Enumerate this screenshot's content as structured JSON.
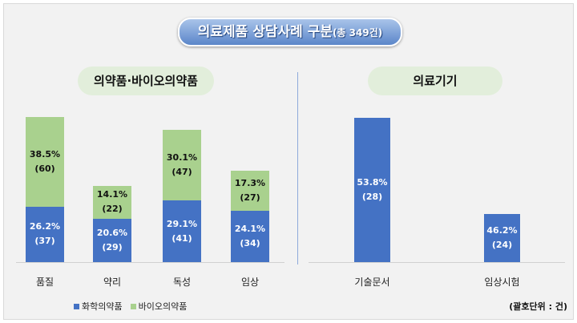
{
  "title": {
    "main": "의료제품 상담사례 구분",
    "sub": "(총 349건)"
  },
  "colors": {
    "chemical": "#4472c4",
    "bio": "#a9d18e"
  },
  "legend": [
    "화학의약품",
    "바이오의약품"
  ],
  "unit_note": "(괄호단위 : 건)",
  "chart_data": [
    {
      "type": "bar",
      "stacked": true,
      "title": "의약품·바이오의약품",
      "categories": [
        "품질",
        "약리",
        "독성",
        "임상"
      ],
      "ylim": [
        0,
        100
      ],
      "series": [
        {
          "name": "화학의약품",
          "values": [
            37,
            29,
            41,
            34
          ],
          "labels": [
            "26.2%",
            "20.6%",
            "29.1%",
            "24.1%"
          ],
          "counts": [
            "(37)",
            "(29)",
            "(41)",
            "(34)"
          ]
        },
        {
          "name": "바이오의약품",
          "values": [
            60,
            22,
            47,
            27
          ],
          "labels": [
            "38.5%",
            "14.1%",
            "30.1%",
            "17.3%"
          ],
          "counts": [
            "(60)",
            "(22)",
            "(47)",
            "(27)"
          ]
        }
      ]
    },
    {
      "type": "bar",
      "title": "의료기기",
      "categories": [
        "기술문서",
        "임상시험"
      ],
      "ylim": [
        22,
        28
      ],
      "values": [
        28,
        24
      ],
      "labels": [
        "53.8%",
        "46.2%"
      ],
      "counts": [
        "(28)",
        "(24)"
      ]
    }
  ]
}
